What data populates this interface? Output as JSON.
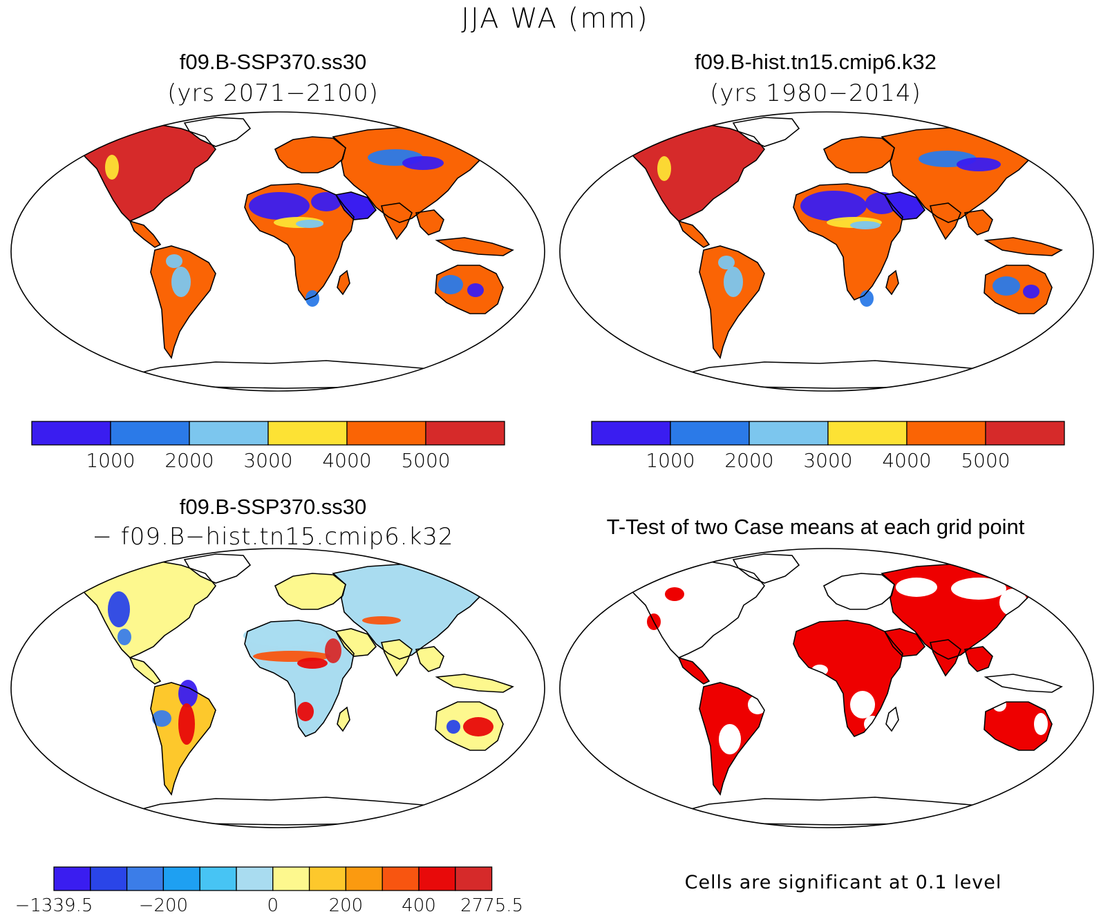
{
  "title": "JJA WA (mm)",
  "panels": [
    {
      "title_line1": "f09.B-SSP370.ss30",
      "title_line2": "(yrs 2071−2100)"
    },
    {
      "title_line1": "f09.B-hist.tn15.cmip6.k32",
      "title_line2": "(yrs 1980−2014)"
    },
    {
      "title_line1": "f09.B-SSP370.ss30",
      "title_line2": "− f09.B−hist.tn15.cmip6.k32"
    },
    {
      "title_line1": "T-Test of two Case means at each grid point",
      "note": "Cells are significant at 0.1 level"
    }
  ],
  "chart_data": [
    {
      "type": "heatmap",
      "title": "f09.B-SSP370.ss30 (yrs 2071−2100)",
      "colorbar": {
        "labels": [
          "1000",
          "2000",
          "3000",
          "4000",
          "5000"
        ],
        "colors": [
          "#3a1df0",
          "#2b7ae8",
          "#7cc6ee",
          "#fde234",
          "#fa6405",
          "#d62a2a"
        ]
      }
    },
    {
      "type": "heatmap",
      "title": "f09.B-hist.tn15.cmip6.k32 (yrs 1980−2014)",
      "colorbar": {
        "labels": [
          "1000",
          "2000",
          "3000",
          "4000",
          "5000"
        ],
        "colors": [
          "#3a1df0",
          "#2b7ae8",
          "#7cc6ee",
          "#fde234",
          "#fa6405",
          "#d62a2a"
        ]
      }
    },
    {
      "type": "heatmap",
      "title": "f09.B-SSP370.ss30 − f09.B−hist.tn15.cmip6.k32",
      "colorbar": {
        "labels": [
          "−1339.5",
          "−200",
          "0",
          "200",
          "400",
          "2775.5"
        ],
        "colors": [
          "#3a1df0",
          "#2a45e8",
          "#3b7de8",
          "#1ea0f2",
          "#47c4f4",
          "#a9dcf0",
          "#fdf88e",
          "#fdc82c",
          "#fb9a10",
          "#f85510",
          "#e80a0a",
          "#d62a2a"
        ]
      }
    },
    {
      "type": "heatmap",
      "title": "T-Test of two Case means at each grid point",
      "colorbar": {
        "labels": [],
        "colors": [
          "#ee0000"
        ]
      }
    }
  ],
  "colors": {
    "ocean": "#ffffff",
    "coast": "#000000",
    "significant": "#ee0000"
  }
}
